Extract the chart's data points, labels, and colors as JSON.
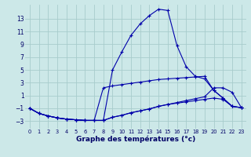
{
  "background_color": "#cce8e8",
  "grid_color": "#a8cccc",
  "line_color": "#0000aa",
  "xlabel": "Graphe des températures (°c)",
  "xlabel_fontsize": 6.5,
  "ytick_vals": [
    -3,
    -1,
    1,
    3,
    5,
    7,
    9,
    11,
    13
  ],
  "xtick_vals": [
    0,
    1,
    2,
    3,
    4,
    5,
    6,
    7,
    8,
    9,
    10,
    11,
    12,
    13,
    14,
    15,
    16,
    17,
    18,
    19,
    20,
    21,
    22,
    23
  ],
  "xlim": [
    -0.5,
    23.5
  ],
  "ylim": [
    -4.2,
    15.2
  ],
  "line1_x": [
    0,
    1,
    2,
    3,
    4,
    5,
    6,
    7,
    8,
    9,
    10,
    11,
    12,
    13,
    14,
    15,
    16,
    17,
    18,
    19,
    20,
    21,
    22,
    23
  ],
  "line1_y": [
    -1.0,
    -1.8,
    -2.2,
    -2.5,
    -2.7,
    -2.8,
    -2.9,
    -2.9,
    -2.9,
    5.0,
    7.8,
    10.4,
    12.2,
    13.5,
    14.5,
    14.3,
    8.8,
    5.5,
    4.0,
    3.6,
    1.8,
    0.6,
    -0.7,
    -0.9
  ],
  "line2_x": [
    0,
    1,
    2,
    3,
    4,
    5,
    6,
    7,
    8,
    9,
    10,
    11,
    12,
    13,
    14,
    15,
    16,
    17,
    18,
    19,
    20,
    21,
    22,
    23
  ],
  "line2_y": [
    -1.0,
    -1.8,
    -2.2,
    -2.5,
    -2.7,
    -2.8,
    -2.9,
    -2.9,
    2.2,
    2.5,
    2.7,
    2.9,
    3.1,
    3.3,
    3.5,
    3.6,
    3.7,
    3.8,
    3.9,
    4.0,
    1.8,
    0.6,
    -0.7,
    -0.9
  ],
  "line3_x": [
    0,
    1,
    2,
    3,
    4,
    5,
    6,
    7,
    8,
    9,
    10,
    11,
    12,
    13,
    14,
    15,
    16,
    17,
    18,
    19,
    20,
    21,
    22,
    23
  ],
  "line3_y": [
    -1.0,
    -1.8,
    -2.2,
    -2.5,
    -2.7,
    -2.8,
    -2.9,
    -2.9,
    -2.9,
    -2.4,
    -2.1,
    -1.7,
    -1.4,
    -1.1,
    -0.7,
    -0.4,
    -0.1,
    0.2,
    0.5,
    0.8,
    2.2,
    2.2,
    1.5,
    -0.9
  ],
  "line4_x": [
    0,
    1,
    2,
    3,
    4,
    5,
    6,
    7,
    8,
    9,
    10,
    11,
    12,
    13,
    14,
    15,
    16,
    17,
    18,
    19,
    20,
    21,
    22,
    23
  ],
  "line4_y": [
    -1.0,
    -1.8,
    -2.2,
    -2.5,
    -2.7,
    -2.8,
    -2.9,
    -2.9,
    -2.9,
    -2.4,
    -2.1,
    -1.7,
    -1.4,
    -1.1,
    -0.7,
    -0.4,
    -0.2,
    0.0,
    0.2,
    0.4,
    0.6,
    0.4,
    -0.7,
    -0.9
  ]
}
